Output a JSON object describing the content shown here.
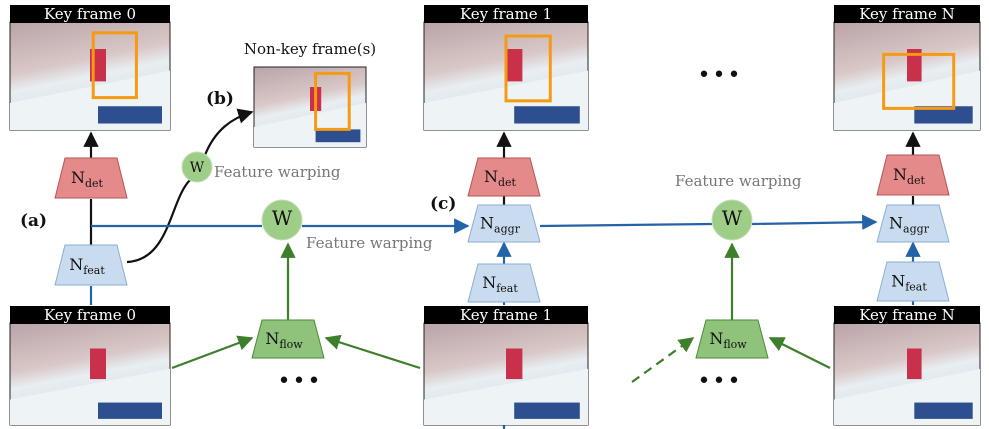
{
  "labels": {
    "a": "(a)",
    "b": "(b)",
    "c": "(c)"
  },
  "top_frames": [
    "Key frame 0",
    "Key frame 1",
    "Key frame N"
  ],
  "bottom_frames": [
    "Key frame 0",
    "Key frame 1",
    "Key frame N"
  ],
  "non_key_frame": "Non-key frame(s)",
  "nodes": [
    {
      "main": "N",
      "sub": "det"
    },
    {
      "main": "N",
      "sub": "feat"
    },
    {
      "main": "N",
      "sub": "det"
    },
    {
      "main": "N",
      "sub": "aggr"
    },
    {
      "main": "N",
      "sub": "feat"
    },
    {
      "main": "N",
      "sub": "det"
    },
    {
      "main": "N",
      "sub": "aggr"
    },
    {
      "main": "N",
      "sub": "feat"
    },
    {
      "main": "N",
      "sub": "flow"
    },
    {
      "main": "N",
      "sub": "flow"
    }
  ],
  "warps": [
    {
      "symbol": "W",
      "caption": "Feature warping"
    },
    {
      "symbol": "W",
      "caption": "Feature warping"
    },
    {
      "symbol": "W",
      "caption": "Feature warping"
    }
  ],
  "ellipses": [
    "•••",
    "•••",
    "•••"
  ]
}
